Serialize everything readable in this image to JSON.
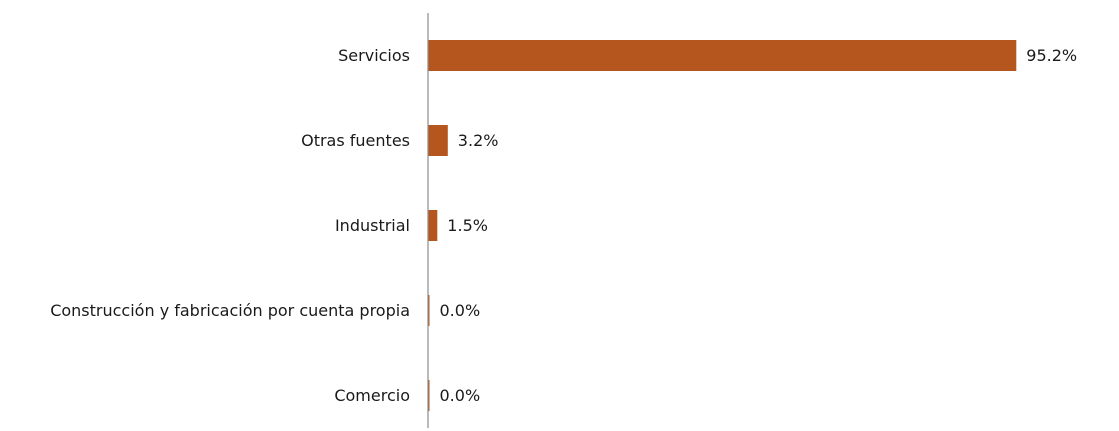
{
  "chart_data": {
    "type": "bar",
    "orientation": "horizontal",
    "categories": [
      "Servicios",
      "Otras fuentes",
      "Industrial",
      "Construcción y fabricación por cuenta propia",
      "Comercio"
    ],
    "values": [
      95.2,
      3.2,
      1.5,
      0.0,
      0.0
    ],
    "value_labels": [
      "95.2%",
      "3.2%",
      "1.5%",
      "0.0%",
      "0.0%"
    ],
    "xlim": [
      0,
      100
    ],
    "grid": false,
    "legend": "none",
    "bar_color": "#B5561F",
    "axis_color": "#8C8C8C"
  }
}
